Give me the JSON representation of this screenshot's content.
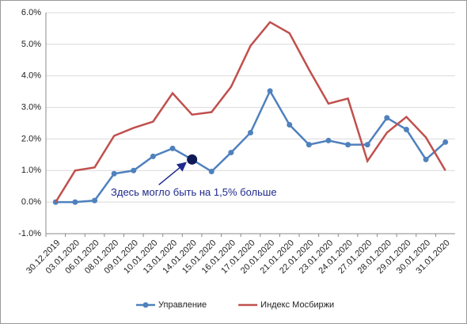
{
  "chart_data": {
    "type": "line",
    "categories": [
      "30.12.2019",
      "03.01.2020",
      "06.01.2020",
      "08.01.2020",
      "09.01.2020",
      "10.01.2020",
      "13.01.2020",
      "14.01.2020",
      "15.01.2020",
      "16.01.2020",
      "17.01.2020",
      "20.01.2020",
      "21.01.2020",
      "22.01.2020",
      "23.01.2020",
      "24.01.2020",
      "27.01.2020",
      "28.01.2020",
      "29.01.2020",
      "30.01.2020",
      "31.01.2020"
    ],
    "series": [
      {
        "name": "Управление",
        "color": "#4f81bd",
        "markers": true,
        "values": [
          0,
          0,
          0.05,
          0.9,
          1.0,
          1.45,
          1.7,
          1.35,
          0.97,
          1.57,
          2.2,
          3.52,
          2.45,
          1.82,
          1.95,
          1.82,
          1.82,
          2.67,
          2.3,
          1.35,
          1.9
        ]
      },
      {
        "name": "Индекс Мосбиржи",
        "color": "#c0504d",
        "markers": false,
        "values": [
          0,
          1.0,
          1.1,
          2.1,
          2.35,
          2.55,
          3.45,
          2.77,
          2.85,
          3.65,
          4.95,
          5.7,
          5.35,
          4.2,
          3.12,
          3.28,
          1.3,
          2.2,
          2.7,
          2.05,
          1.0
        ]
      }
    ],
    "ylim": [
      -1,
      6
    ],
    "yticks": [
      {
        "value": -1,
        "label": "-1.0%"
      },
      {
        "value": 0,
        "label": "0.0%"
      },
      {
        "value": 1,
        "label": "1.0%"
      },
      {
        "value": 2,
        "label": "2.0%"
      },
      {
        "value": 3,
        "label": "3.0%"
      },
      {
        "value": 4,
        "label": "4.0%"
      },
      {
        "value": 5,
        "label": "5.0%"
      },
      {
        "value": 6,
        "label": "6.0%"
      }
    ],
    "grid": true,
    "legend": "bottom",
    "annotation": {
      "text": "Здесь могло быть на 1,5% больше",
      "at": "14.01.2020",
      "color": "#1f2a8c"
    }
  }
}
